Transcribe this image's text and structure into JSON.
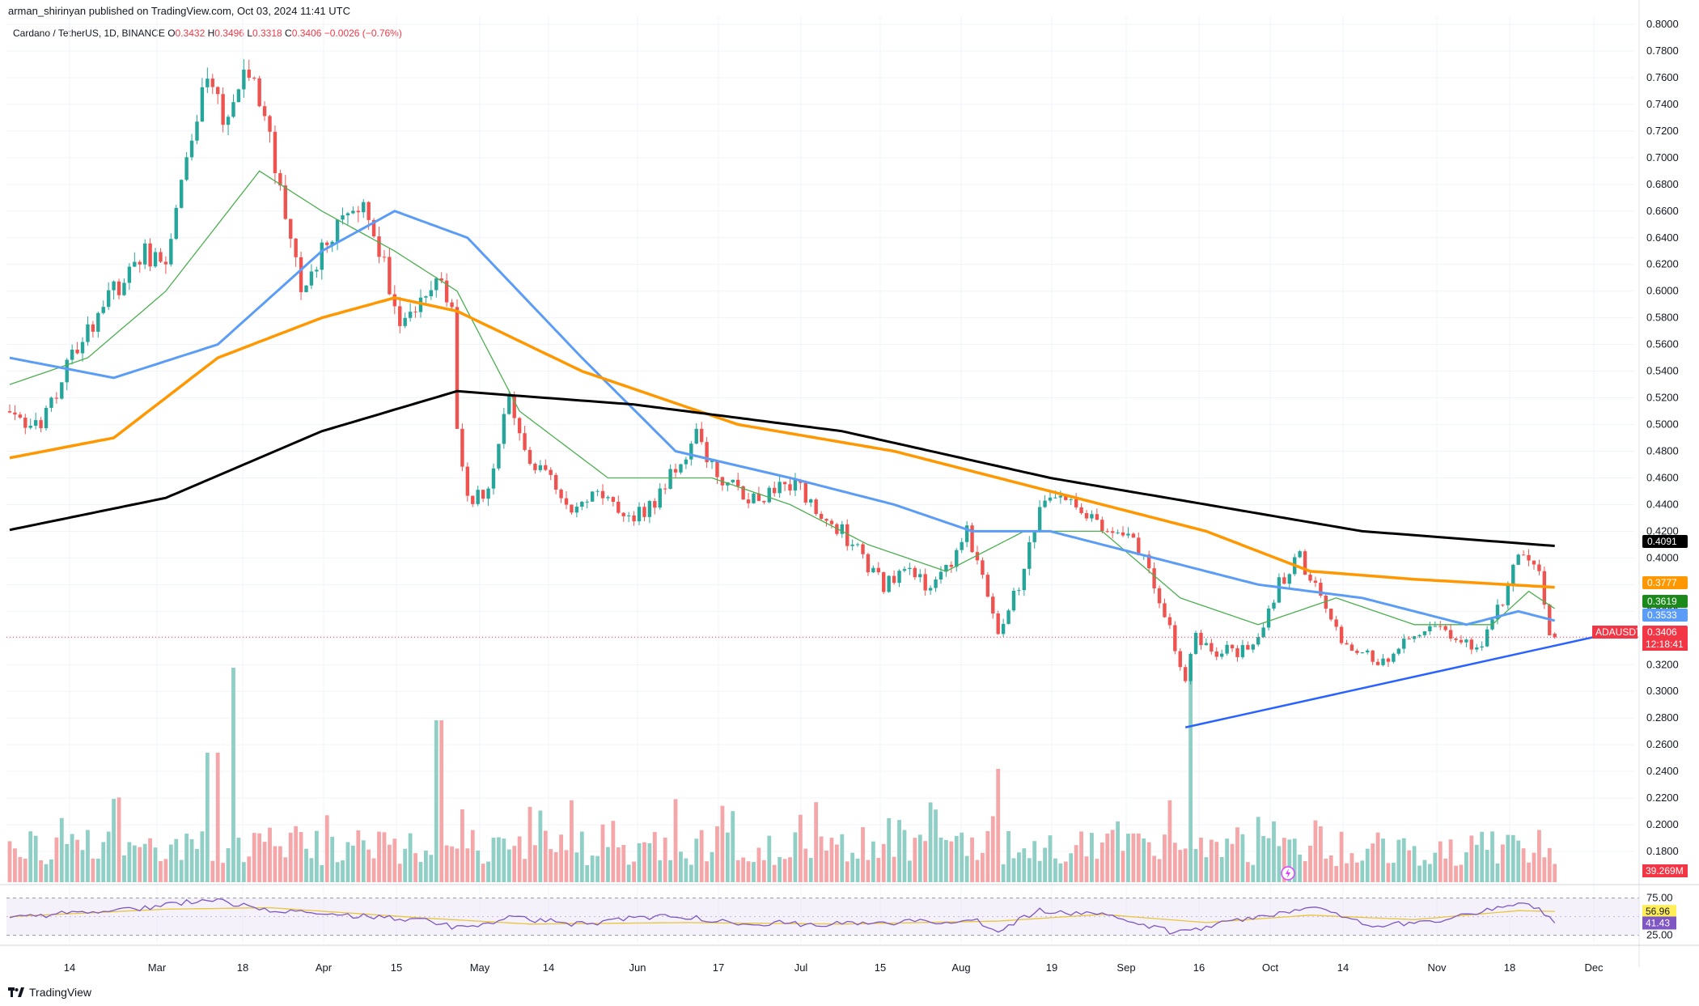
{
  "header": {
    "publisher": "arman_shirinyan published on TradingView.com, Oct 03, 2024 11:41 UTC",
    "symbol_line": "Cardano / TetherUS, 1D, BINANCE",
    "o_label": "O",
    "o_value": "0.3432",
    "h_label": "H",
    "h_value": "0.3496",
    "l_label": "L",
    "l_value": "0.3318",
    "c_label": "C",
    "c_value": "0.3406",
    "change": "−0.0026 (−0.76%)"
  },
  "footer": {
    "brand": "TradingView"
  },
  "colors": {
    "up": "#26a69a",
    "down": "#ef5350",
    "up_vol": "#8fcfc5",
    "down_vol": "#f4a6a8",
    "sma_black": "#000000",
    "sma_orange": "#ff9800",
    "sma_blue": "#5b9cf6",
    "sma_green": "#4caf50",
    "trendline": "#2962ff",
    "rsi": "#7e57c2",
    "rsi_ma": "#e9c53a",
    "rsi_band": "#ede7f6"
  },
  "chart_data": {
    "type": "candlestick",
    "title": "Cardano / TetherUS, 1D, BINANCE",
    "ylim": [
      0.16,
      0.8
    ],
    "y_ticks": [
      "0.8000",
      "0.7800",
      "0.7600",
      "0.7400",
      "0.7200",
      "0.7000",
      "0.6800",
      "0.6600",
      "0.6400",
      "0.6200",
      "0.6000",
      "0.5800",
      "0.5600",
      "0.5400",
      "0.5200",
      "0.5000",
      "0.4800",
      "0.4600",
      "0.4400",
      "0.4200",
      "0.4000",
      "0.3800",
      "0.3600",
      "0.3400",
      "0.3200",
      "0.3000",
      "0.2800",
      "0.2600",
      "0.2400",
      "0.2200",
      "0.2000",
      "0.1800"
    ],
    "x_ticks": [
      "14",
      "Mar",
      "18",
      "Apr",
      "15",
      "May",
      "14",
      "Jun",
      "17",
      "Jul",
      "15",
      "Aug",
      "19",
      "Sep",
      "16",
      "Oct",
      "14",
      "Nov",
      "18",
      "Dec"
    ],
    "price_keypoints": [
      [
        0,
        0.51
      ],
      [
        6,
        0.5
      ],
      [
        12,
        0.55
      ],
      [
        20,
        0.6
      ],
      [
        26,
        0.63
      ],
      [
        30,
        0.62
      ],
      [
        35,
        0.71
      ],
      [
        38,
        0.76
      ],
      [
        42,
        0.72
      ],
      [
        46,
        0.77
      ],
      [
        48,
        0.74
      ],
      [
        52,
        0.68
      ],
      [
        56,
        0.6
      ],
      [
        60,
        0.63
      ],
      [
        64,
        0.65
      ],
      [
        68,
        0.66
      ],
      [
        72,
        0.62
      ],
      [
        74,
        0.58
      ],
      [
        78,
        0.59
      ],
      [
        82,
        0.61
      ],
      [
        85,
        0.58
      ],
      [
        86,
        0.5
      ],
      [
        88,
        0.44
      ],
      [
        92,
        0.45
      ],
      [
        96,
        0.52
      ],
      [
        100,
        0.47
      ],
      [
        104,
        0.46
      ],
      [
        108,
        0.44
      ],
      [
        112,
        0.45
      ],
      [
        116,
        0.44
      ],
      [
        120,
        0.43
      ],
      [
        124,
        0.44
      ],
      [
        128,
        0.47
      ],
      [
        132,
        0.49
      ],
      [
        136,
        0.46
      ],
      [
        140,
        0.45
      ],
      [
        144,
        0.44
      ],
      [
        148,
        0.46
      ],
      [
        152,
        0.45
      ],
      [
        156,
        0.43
      ],
      [
        160,
        0.42
      ],
      [
        164,
        0.4
      ],
      [
        168,
        0.38
      ],
      [
        172,
        0.39
      ],
      [
        176,
        0.38
      ],
      [
        180,
        0.39
      ],
      [
        184,
        0.42
      ],
      [
        186,
        0.4
      ],
      [
        190,
        0.34
      ],
      [
        194,
        0.38
      ],
      [
        198,
        0.44
      ],
      [
        202,
        0.45
      ],
      [
        206,
        0.44
      ],
      [
        210,
        0.42
      ],
      [
        214,
        0.42
      ],
      [
        218,
        0.4
      ],
      [
        222,
        0.36
      ],
      [
        224,
        0.33
      ],
      [
        226,
        0.31
      ],
      [
        228,
        0.34
      ],
      [
        232,
        0.33
      ],
      [
        236,
        0.33
      ],
      [
        240,
        0.34
      ],
      [
        244,
        0.38
      ],
      [
        248,
        0.4
      ],
      [
        252,
        0.37
      ],
      [
        256,
        0.34
      ],
      [
        260,
        0.33
      ],
      [
        263,
        0.32
      ],
      [
        266,
        0.33
      ],
      [
        270,
        0.34
      ],
      [
        274,
        0.35
      ],
      [
        278,
        0.34
      ],
      [
        282,
        0.33
      ],
      [
        286,
        0.36
      ],
      [
        290,
        0.4
      ],
      [
        292,
        0.4
      ],
      [
        294,
        0.39
      ],
      [
        296,
        0.34
      ],
      [
        297,
        0.3406
      ]
    ],
    "sma_200_points": [
      [
        0,
        0.421
      ],
      [
        30,
        0.445
      ],
      [
        60,
        0.495
      ],
      [
        86,
        0.525
      ],
      [
        120,
        0.515
      ],
      [
        160,
        0.495
      ],
      [
        200,
        0.46
      ],
      [
        230,
        0.44
      ],
      [
        260,
        0.42
      ],
      [
        297,
        0.409
      ]
    ],
    "sma_100_points": [
      [
        0,
        0.475
      ],
      [
        20,
        0.49
      ],
      [
        40,
        0.55
      ],
      [
        60,
        0.58
      ],
      [
        74,
        0.595
      ],
      [
        86,
        0.585
      ],
      [
        110,
        0.54
      ],
      [
        140,
        0.5
      ],
      [
        170,
        0.48
      ],
      [
        200,
        0.45
      ],
      [
        230,
        0.42
      ],
      [
        250,
        0.39
      ],
      [
        270,
        0.384
      ],
      [
        297,
        0.378
      ]
    ],
    "sma_50_points": [
      [
        0,
        0.55
      ],
      [
        20,
        0.535
      ],
      [
        40,
        0.56
      ],
      [
        60,
        0.63
      ],
      [
        74,
        0.66
      ],
      [
        88,
        0.64
      ],
      [
        110,
        0.55
      ],
      [
        128,
        0.48
      ],
      [
        150,
        0.46
      ],
      [
        170,
        0.44
      ],
      [
        185,
        0.42
      ],
      [
        200,
        0.42
      ],
      [
        220,
        0.4
      ],
      [
        240,
        0.38
      ],
      [
        260,
        0.37
      ],
      [
        280,
        0.35
      ],
      [
        290,
        0.36
      ],
      [
        297,
        0.353
      ]
    ],
    "sma_20_points": [
      [
        0,
        0.53
      ],
      [
        15,
        0.55
      ],
      [
        30,
        0.6
      ],
      [
        48,
        0.69
      ],
      [
        60,
        0.66
      ],
      [
        74,
        0.63
      ],
      [
        86,
        0.6
      ],
      [
        98,
        0.51
      ],
      [
        115,
        0.46
      ],
      [
        135,
        0.46
      ],
      [
        150,
        0.44
      ],
      [
        165,
        0.41
      ],
      [
        180,
        0.39
      ],
      [
        195,
        0.42
      ],
      [
        210,
        0.42
      ],
      [
        225,
        0.37
      ],
      [
        240,
        0.35
      ],
      [
        255,
        0.37
      ],
      [
        270,
        0.35
      ],
      [
        285,
        0.35
      ],
      [
        292,
        0.375
      ],
      [
        297,
        0.362
      ]
    ],
    "trendline": [
      [
        226,
        0.273
      ],
      [
        306,
        0.342
      ]
    ],
    "last_price": 0.3406,
    "price_badges": [
      {
        "value": "0.4091",
        "price": 0.4091,
        "color": "#000000"
      },
      {
        "value": "0.3777",
        "price": 0.3777,
        "color": "#ff9800"
      },
      {
        "value": "0.3619",
        "price": 0.3619,
        "color": "#1b8a1b"
      },
      {
        "value": "0.3533",
        "price": 0.3533,
        "color": "#5b9cf6"
      },
      {
        "value": "0.3406",
        "price": 0.3406,
        "color": "#f23645"
      }
    ],
    "countdown": "12:18:41",
    "symbol_tag": "ADAUSDT",
    "volume_last": "39.269M",
    "rsi": {
      "ylim": [
        18,
        80
      ],
      "levels": [
        75,
        25
      ],
      "level_labels": [
        "75.00",
        "25.00"
      ],
      "last_rsi_ma": "56.96",
      "last_rsi": "41.43",
      "rsi_keypoints": [
        [
          0,
          48
        ],
        [
          12,
          55
        ],
        [
          26,
          62
        ],
        [
          36,
          72
        ],
        [
          38,
          75
        ],
        [
          44,
          66
        ],
        [
          52,
          58
        ],
        [
          60,
          52
        ],
        [
          70,
          50
        ],
        [
          80,
          44
        ],
        [
          86,
          35
        ],
        [
          96,
          48
        ],
        [
          110,
          40
        ],
        [
          126,
          52
        ],
        [
          140,
          42
        ],
        [
          160,
          40
        ],
        [
          186,
          45
        ],
        [
          190,
          32
        ],
        [
          198,
          58
        ],
        [
          212,
          50
        ],
        [
          224,
          28
        ],
        [
          232,
          40
        ],
        [
          250,
          63
        ],
        [
          262,
          38
        ],
        [
          274,
          44
        ],
        [
          290,
          68
        ],
        [
          294,
          62
        ],
        [
          297,
          41.43
        ]
      ],
      "ma_keypoints": [
        [
          0,
          50
        ],
        [
          30,
          60
        ],
        [
          50,
          62
        ],
        [
          80,
          48
        ],
        [
          100,
          40
        ],
        [
          130,
          42
        ],
        [
          160,
          40
        ],
        [
          190,
          44
        ],
        [
          210,
          53
        ],
        [
          230,
          42
        ],
        [
          250,
          52
        ],
        [
          270,
          46
        ],
        [
          290,
          58
        ],
        [
          297,
          56.96
        ]
      ]
    }
  }
}
